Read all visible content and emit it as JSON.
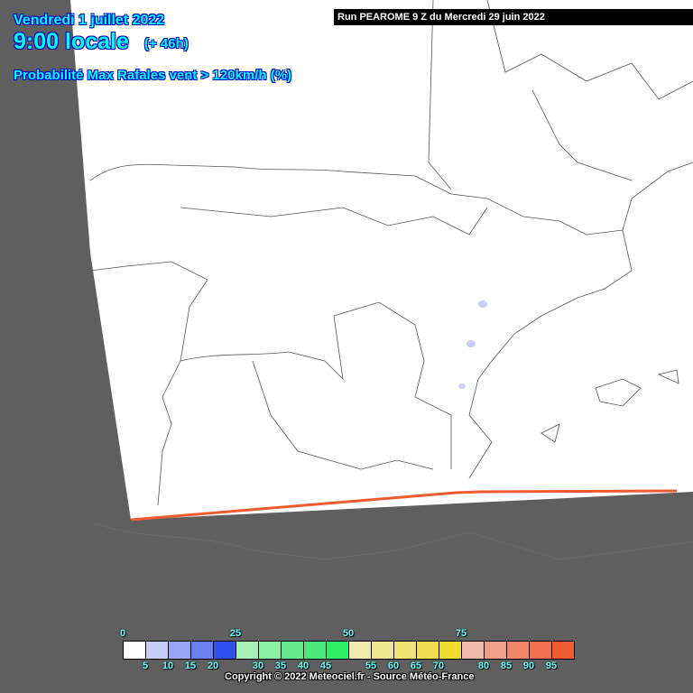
{
  "header": {
    "date": "Vendredi 1 juillet 2022",
    "time": "9:00 locale",
    "lead": "(+ 46h)",
    "parameter": "Probabilité Max Rafales vent > 120km/h (%)"
  },
  "run_label": "Run PEAROME 9 Z du Mercredi 29 juin 2022",
  "legend": {
    "top_labels": [
      "0",
      "25",
      "50",
      "75"
    ],
    "bottom_labels": [
      "5",
      "10",
      "15",
      "20",
      "30",
      "35",
      "40",
      "45",
      "55",
      "60",
      "65",
      "70",
      "80",
      "85",
      "90",
      "95"
    ],
    "colors": [
      "#ffffff",
      "#c8cdfa",
      "#98a5f5",
      "#6a7ff0",
      "#3050f0",
      "#a8f0b8",
      "#8cf0a4",
      "#68ea8c",
      "#4ae878",
      "#30ee64",
      "#f0ebb0",
      "#f0e690",
      "#f0e270",
      "#f0dc50",
      "#f0dc30",
      "#f0b8a8",
      "#f0a088",
      "#f08868",
      "#f07050",
      "#f05a30"
    ]
  },
  "copyright": "Copyright © 2022 Meteociel.fr - Source Météo-France",
  "colors": {
    "outside_domain": "#5f5f5f",
    "domain_edge": "#f05a30",
    "title_text": "#00ffff"
  }
}
